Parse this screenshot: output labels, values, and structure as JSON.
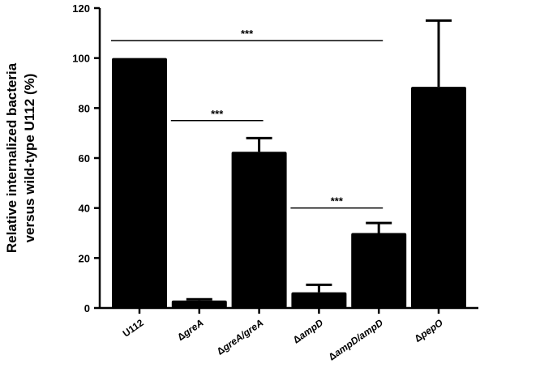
{
  "chart_data": {
    "type": "bar",
    "categories": [
      {
        "prefix": "",
        "italic": "",
        "suffix": "U112"
      },
      {
        "prefix": "Δ",
        "italic": "greA",
        "suffix": ""
      },
      {
        "prefix": "Δ",
        "italic": "greA/greA",
        "suffix": ""
      },
      {
        "prefix": "Δ",
        "italic": "ampD",
        "suffix": ""
      },
      {
        "prefix": "Δ",
        "italic": "ampD/ampD",
        "suffix": ""
      },
      {
        "prefix": "Δ",
        "italic": "pepO",
        "suffix": ""
      }
    ],
    "values": [
      100,
      3,
      62.5,
      6.3,
      30,
      88.5
    ],
    "errors": [
      0,
      0.5,
      5.5,
      3,
      4,
      26.5
    ],
    "ylabel_lines": [
      "Relative internalized bacteria",
      "versus wild-type U112 (%)"
    ],
    "ylim": [
      0,
      120
    ],
    "yticks": [
      0,
      20,
      40,
      60,
      80,
      100,
      120
    ],
    "bar_color": "#000000",
    "significance": [
      {
        "from": 0,
        "to": 4,
        "y": 107,
        "label": "***"
      },
      {
        "from": 1,
        "to": 2,
        "y": 75,
        "label": "***"
      },
      {
        "from": 3,
        "to": 4,
        "y": 40,
        "label": "***"
      }
    ]
  }
}
